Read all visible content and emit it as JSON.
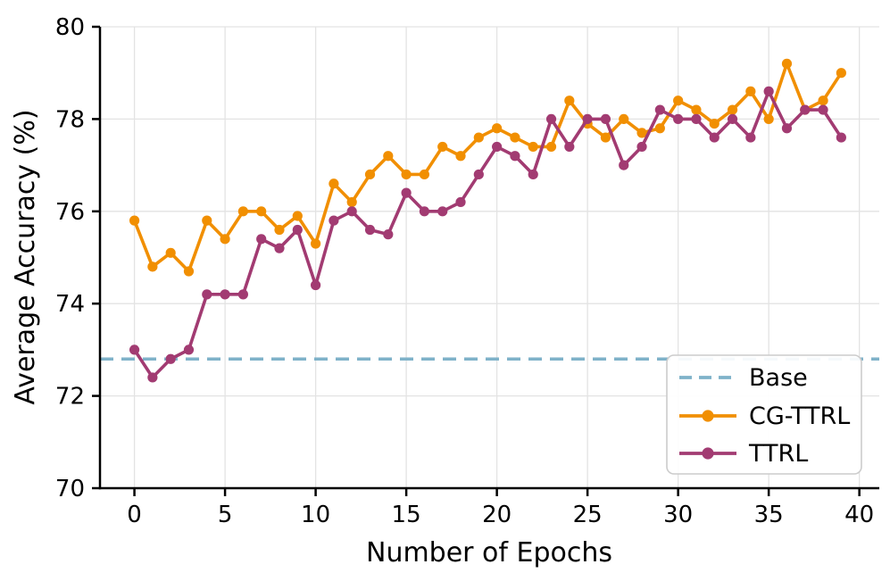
{
  "chart_data": {
    "type": "line",
    "title": "",
    "xlabel": "Number of Epochs",
    "ylabel": "Average Accuracy (%)",
    "xlim": [
      -1.9,
      41.1
    ],
    "ylim": [
      70,
      80
    ],
    "xticks": [
      0,
      5,
      10,
      15,
      20,
      25,
      30,
      35,
      40
    ],
    "yticks": [
      70,
      72,
      74,
      76,
      78,
      80
    ],
    "grid": true,
    "legend_position": "lower right",
    "x": [
      0,
      1,
      2,
      3,
      4,
      5,
      6,
      7,
      8,
      9,
      10,
      11,
      12,
      13,
      14,
      15,
      16,
      17,
      18,
      19,
      20,
      21,
      22,
      23,
      24,
      25,
      26,
      27,
      28,
      29,
      30,
      31,
      32,
      33,
      34,
      35,
      36,
      37,
      38,
      39
    ],
    "series": [
      {
        "name": "CG-TTRL",
        "color": "#F18F01",
        "marker": "circle",
        "values": [
          75.8,
          74.8,
          75.1,
          74.7,
          75.8,
          75.4,
          76.0,
          76.0,
          75.6,
          75.9,
          75.3,
          76.6,
          76.2,
          76.8,
          77.2,
          76.8,
          76.8,
          77.4,
          77.2,
          77.6,
          77.8,
          77.6,
          77.4,
          77.4,
          78.4,
          77.9,
          77.6,
          78.0,
          77.7,
          77.8,
          78.4,
          78.2,
          77.9,
          78.2,
          78.6,
          78.0,
          79.2,
          78.2,
          78.4,
          79.0
        ]
      },
      {
        "name": "TTRL",
        "color": "#A23B72",
        "marker": "circle",
        "values": [
          73.0,
          72.4,
          72.8,
          73.0,
          74.2,
          74.2,
          74.2,
          75.4,
          75.2,
          75.6,
          74.4,
          75.8,
          76.0,
          75.6,
          75.5,
          76.4,
          76.0,
          76.0,
          76.2,
          76.8,
          77.4,
          77.2,
          76.8,
          78.0,
          77.4,
          78.0,
          78.0,
          77.0,
          77.4,
          78.2,
          78.0,
          78.0,
          77.6,
          78.0,
          77.6,
          78.6,
          77.8,
          78.2,
          78.2,
          77.6
        ]
      }
    ],
    "baseline": {
      "name": "Base",
      "value": 72.8,
      "color": "#7FB2C9",
      "line_style": "dashed"
    }
  },
  "legend": {
    "items": [
      {
        "label": "Base"
      },
      {
        "label": "CG-TTRL"
      },
      {
        "label": "TTRL"
      }
    ]
  },
  "style": {
    "grid_color": "#E3E3E3",
    "axis_color": "#000000",
    "legend_border_color": "#CCCCCC",
    "background": "#FFFFFF"
  }
}
